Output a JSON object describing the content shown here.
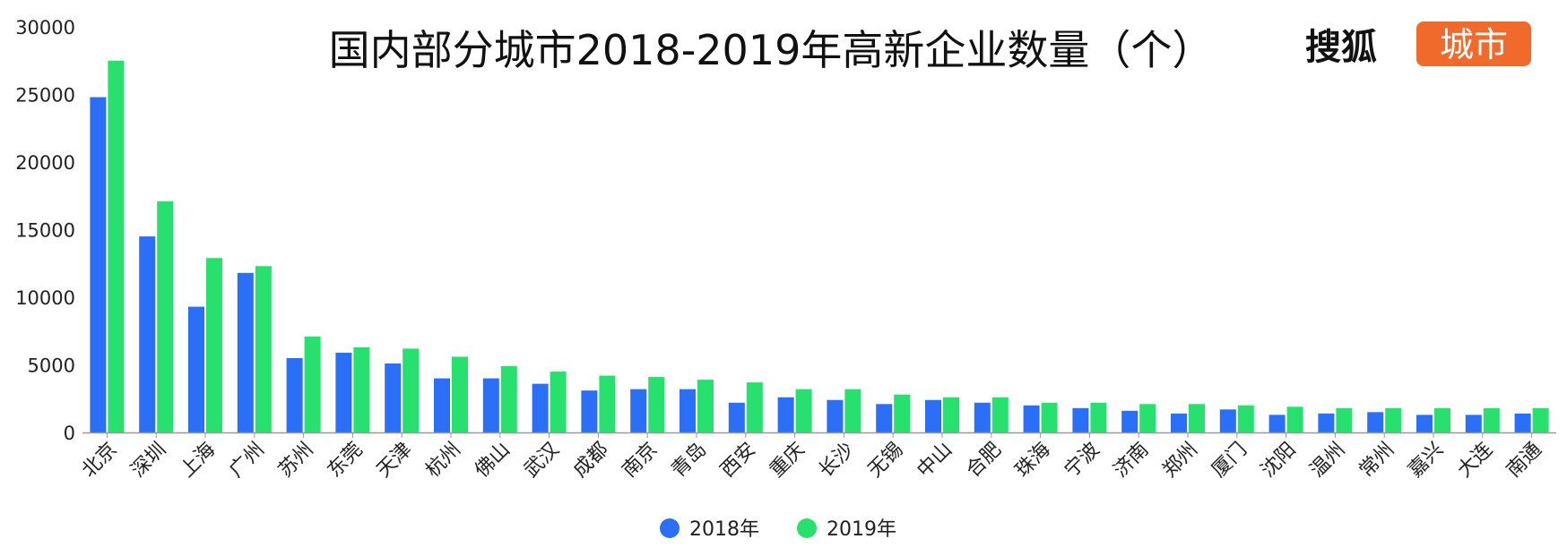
{
  "brand": {
    "name": "搜狐",
    "badge": "城市",
    "badge_color": "#ef6a2b"
  },
  "colors": {
    "series_2018": "#2a6ff5",
    "series_2019": "#27e06e",
    "axis": "#999999"
  },
  "chart_data": {
    "type": "bar",
    "title": "国内部分城市2018-2019年高新企业数量（个）",
    "xlabel": "",
    "ylabel": "",
    "ylim": [
      0,
      30000
    ],
    "yticks": [
      0,
      5000,
      10000,
      15000,
      20000,
      25000,
      30000
    ],
    "grid": false,
    "legend_position": "bottom-center",
    "categories": [
      "北京",
      "深圳",
      "上海",
      "广州",
      "苏州",
      "东莞",
      "天津",
      "杭州",
      "佛山",
      "武汉",
      "成都",
      "南京",
      "青岛",
      "西安",
      "重庆",
      "长沙",
      "无锡",
      "中山",
      "合肥",
      "珠海",
      "宁波",
      "济南",
      "郑州",
      "厦门",
      "沈阳",
      "温州",
      "常州",
      "嘉兴",
      "大连",
      "南通"
    ],
    "series": [
      {
        "name": "2018年",
        "color": "#2a6ff5",
        "values": [
          24800,
          14500,
          9300,
          11800,
          5500,
          5900,
          5100,
          4000,
          4000,
          3600,
          3100,
          3200,
          3200,
          2200,
          2600,
          2400,
          2100,
          2400,
          2200,
          2000,
          1800,
          1600,
          1400,
          1700,
          1300,
          1400,
          1500,
          1300,
          1300,
          1400
        ]
      },
      {
        "name": "2019年",
        "color": "#27e06e",
        "values": [
          27500,
          17100,
          12900,
          12300,
          7100,
          6300,
          6200,
          5600,
          4900,
          4500,
          4200,
          4100,
          3900,
          3700,
          3200,
          3200,
          2800,
          2600,
          2600,
          2200,
          2200,
          2100,
          2100,
          2000,
          1900,
          1800,
          1800,
          1800,
          1800,
          1800
        ]
      }
    ]
  }
}
